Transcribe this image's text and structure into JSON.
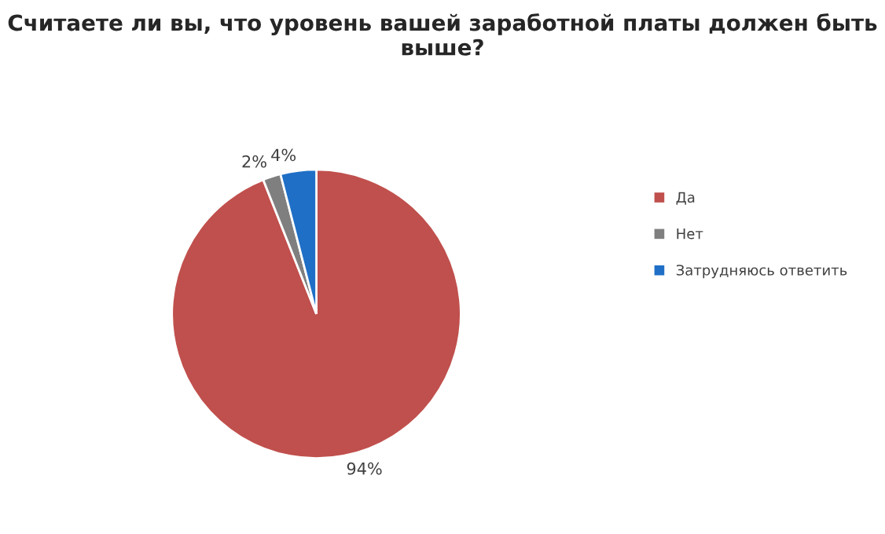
{
  "chart_data": {
    "type": "pie",
    "title": "Считаете ли вы, что уровень вашей заработной платы должен быть выше?",
    "categories": [
      "Да",
      "Нет",
      "Затрудняюсь ответить"
    ],
    "values": [
      94,
      2,
      4
    ],
    "colors": [
      "#c0504d",
      "#7f7f7f",
      "#1f6fc6"
    ],
    "value_labels": [
      "94%",
      "2%",
      "4%"
    ],
    "legend": "right"
  }
}
